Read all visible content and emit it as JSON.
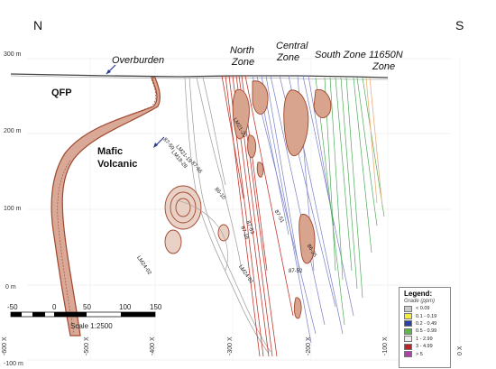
{
  "compass": {
    "left": "N",
    "right": "S"
  },
  "elevations": [
    "300 m",
    "200 m",
    "100 m",
    "0 m",
    "-100 m"
  ],
  "eastings": [
    "-600 X",
    "-500 X",
    "-400 X",
    "-300 X",
    "-200 X",
    "-100 X",
    "0 X"
  ],
  "zones": {
    "overburden": "Overburden",
    "north": [
      "North",
      "Zone"
    ],
    "central": [
      "Central",
      "Zone"
    ],
    "south": "South Zone",
    "n11650": [
      "11650N",
      "Zone"
    ]
  },
  "rocks": {
    "qfp": "QFP",
    "mafic": [
      "Mafic",
      "Volcanic"
    ]
  },
  "holes": [
    "LM21-19",
    "LM18-28",
    "87-59",
    "87-66",
    "86-10",
    "LM21-20",
    "87-51",
    "87-53",
    "87-16",
    "86-25",
    "87-52",
    "LM24-01",
    "LM24-02"
  ],
  "scale_bar": {
    "ticks": [
      "-50",
      "0",
      "50",
      "100",
      "150"
    ],
    "caption": "Scale 1:2500"
  },
  "legend": {
    "title": "Legend:",
    "subtitle": "Grade (ppm)",
    "items": [
      {
        "label": "< 0.09",
        "color": "#c9c9c9"
      },
      {
        "label": "0.1 - 0.19",
        "color": "#f2ee3a"
      },
      {
        "label": "0.2 - 0.49",
        "color": "#2b3fa8"
      },
      {
        "label": "0.5 - 0.99",
        "color": "#5cb848"
      },
      {
        "label": "1    - 2.99",
        "color": "#eeeeee"
      },
      {
        "label": "3    - 4.99",
        "color": "#c0202a"
      },
      {
        "label": "> 5",
        "color": "#b040b0"
      }
    ]
  },
  "colors": {
    "qfp": "#a0472d",
    "north_hole": "#c23a30",
    "central_hole": "#7a7fc7",
    "south_hole": "#4faa5a",
    "zone11650_hole": "#e8b07a",
    "barren_hole": "#9a9a9a"
  }
}
